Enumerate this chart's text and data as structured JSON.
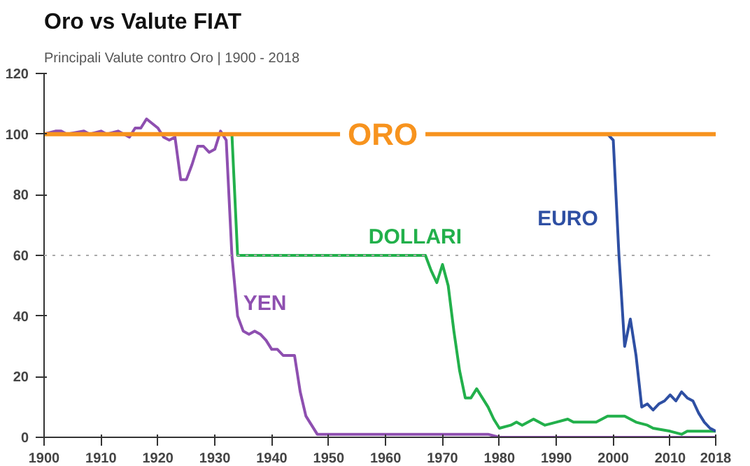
{
  "chart_data": {
    "type": "line",
    "title": "Oro vs Valute FIAT",
    "subtitle": "Principali Valute contro Oro | 1900 - 2018",
    "xlim": [
      1900,
      2018
    ],
    "xticks": [
      1900,
      1910,
      1920,
      1930,
      1940,
      1950,
      1960,
      1970,
      1980,
      1990,
      2000,
      2010,
      2018
    ],
    "ylim": [
      0,
      120
    ],
    "yticks": [
      0,
      20,
      40,
      60,
      80,
      100,
      120
    ],
    "grid": false,
    "ref_lines": [
      {
        "axis": "y",
        "value": 60,
        "color": "#aaaaaa",
        "line_style": "dotted"
      }
    ],
    "series": [
      {
        "name": "YEN",
        "color": "#8e4fb0",
        "x": [
          1900,
          1902,
          1903,
          1904,
          1907,
          1908,
          1910,
          1911,
          1913,
          1914,
          1915,
          1916,
          1917,
          1918,
          1920,
          1921,
          1922,
          1923,
          1924,
          1925,
          1926,
          1927,
          1928,
          1929,
          1930,
          1931,
          1932,
          1933,
          1934,
          1935,
          1936,
          1937,
          1938,
          1939,
          1940,
          1941,
          1942,
          1944,
          1945,
          1946,
          1947,
          1948,
          1978,
          1980,
          2018
        ],
        "values": [
          100,
          101,
          101,
          100,
          101,
          100,
          101,
          100,
          101,
          100,
          99,
          102,
          102,
          105,
          102,
          99,
          98,
          99,
          85,
          85,
          90,
          96,
          96,
          94,
          95,
          101,
          98,
          60,
          40,
          35,
          34,
          35,
          34,
          32,
          29,
          29,
          27,
          27,
          15,
          7,
          4,
          1,
          1,
          0,
          0
        ]
      },
      {
        "name": "DOLLARI",
        "color": "#22b04b",
        "x": [
          1933,
          1934,
          1967,
          1968,
          1969,
          1970,
          1971,
          1972,
          1973,
          1974,
          1975,
          1976,
          1977,
          1978,
          1979,
          1980,
          1982,
          1983,
          1984,
          1986,
          1988,
          1990,
          1992,
          1993,
          1997,
          1999,
          2002,
          2004,
          2006,
          2007,
          2010,
          2012,
          2013,
          2018
        ],
        "values": [
          100,
          60,
          60,
          55,
          51,
          57,
          50,
          35,
          22,
          13,
          13,
          16,
          13,
          10,
          6,
          3,
          4,
          5,
          4,
          6,
          4,
          5,
          6,
          5,
          5,
          7,
          7,
          5,
          4,
          3,
          2,
          1,
          2,
          2
        ]
      },
      {
        "name": "EURO",
        "color": "#2e4fa3",
        "x": [
          1999,
          2000,
          2001,
          2002,
          2003,
          2004,
          2005,
          2006,
          2007,
          2008,
          2009,
          2010,
          2011,
          2012,
          2013,
          2014,
          2015,
          2016,
          2017,
          2018
        ],
        "values": [
          100,
          98,
          60,
          30,
          39,
          27,
          10,
          11,
          9,
          11,
          12,
          14,
          12,
          15,
          13,
          12,
          8,
          5,
          3,
          2
        ]
      },
      {
        "name": "ORO",
        "color": "#f7931e",
        "x": [
          1900,
          1952,
          1953,
          1967,
          2018
        ],
        "values": [
          100,
          100,
          null,
          100,
          100
        ]
      }
    ]
  }
}
